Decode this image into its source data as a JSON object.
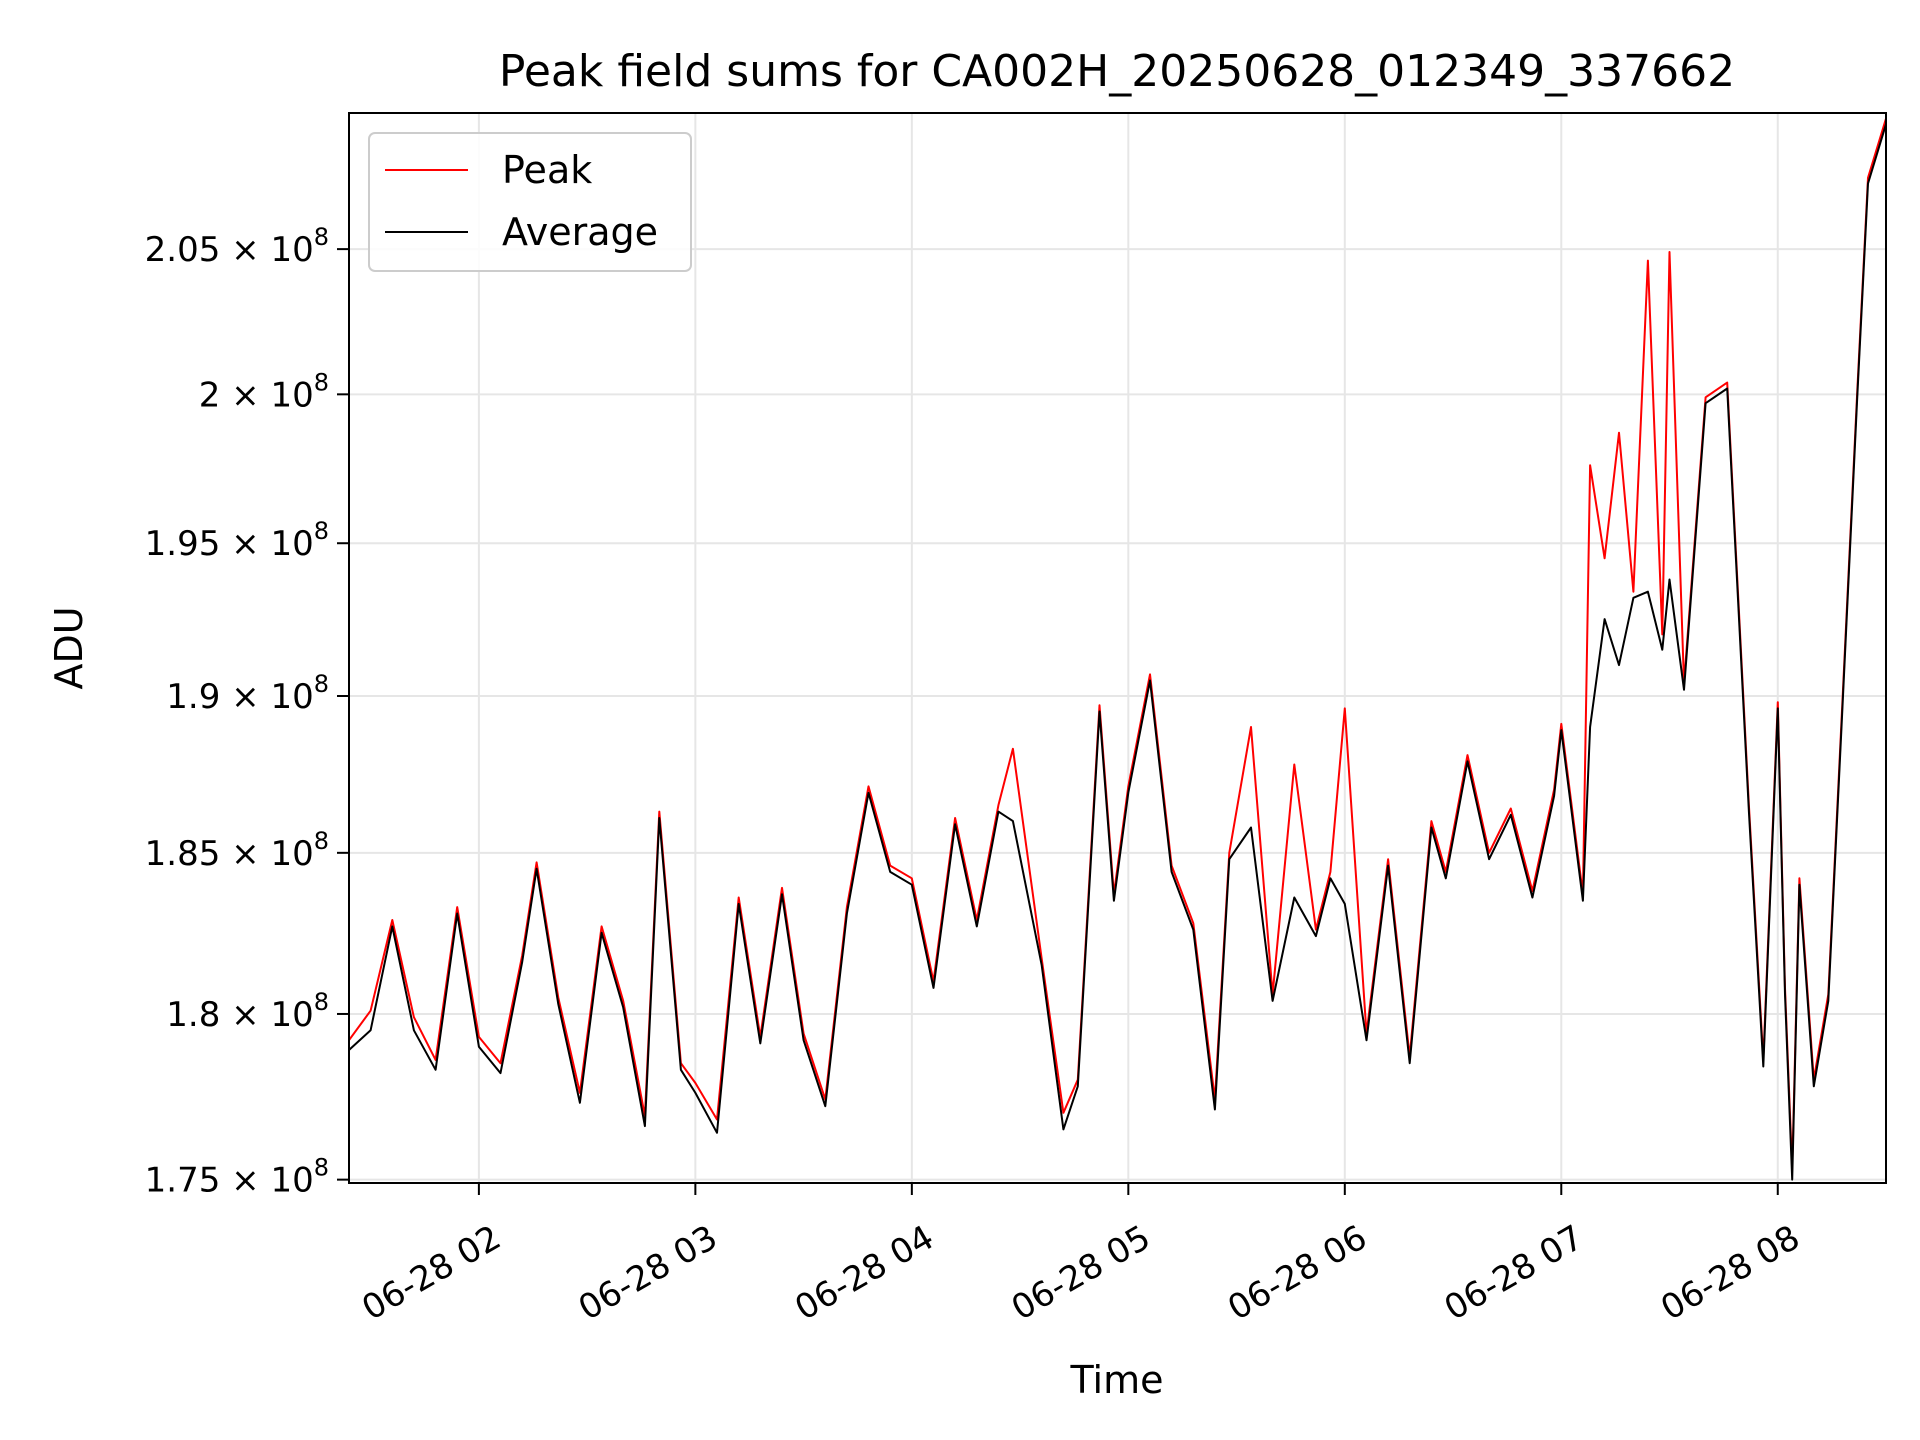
{
  "chart_data": {
    "type": "line",
    "title": "Peak field sums for CA002H_20250628_012349_337662",
    "xlabel": "Time",
    "ylabel": "ADU",
    "x_axis": {
      "type": "time",
      "range": [
        "2025-06-28T01:24",
        "2025-06-28T08:30"
      ],
      "ticks": [
        {
          "value": "2025-06-28T02:00",
          "label": "06-28 02"
        },
        {
          "value": "2025-06-28T03:00",
          "label": "06-28 03"
        },
        {
          "value": "2025-06-28T04:00",
          "label": "06-28 04"
        },
        {
          "value": "2025-06-28T05:00",
          "label": "06-28 05"
        },
        {
          "value": "2025-06-28T06:00",
          "label": "06-28 06"
        },
        {
          "value": "2025-06-28T07:00",
          "label": "06-28 07"
        },
        {
          "value": "2025-06-28T08:00",
          "label": "06-28 08"
        }
      ]
    },
    "y_axis": {
      "scale": "log",
      "range": [
        174900000,
        209800000
      ],
      "ticks": [
        {
          "value": 175000000,
          "mantissa": "1.75",
          "exponent": "8"
        },
        {
          "value": 180000000,
          "mantissa": "1.8",
          "exponent": "8"
        },
        {
          "value": 185000000,
          "mantissa": "1.85",
          "exponent": "8"
        },
        {
          "value": 190000000,
          "mantissa": "1.9",
          "exponent": "8"
        },
        {
          "value": 195000000,
          "mantissa": "1.95",
          "exponent": "8"
        },
        {
          "value": 200000000,
          "mantissa": "2",
          "exponent": "8"
        },
        {
          "value": 205000000,
          "mantissa": "2.05",
          "exponent": "8"
        }
      ]
    },
    "grid": true,
    "legend_position": "top-left",
    "series": [
      {
        "name": "Peak",
        "color": "#ff0000",
        "points": [
          [
            "2025-06-28T01:24",
            179200000
          ],
          [
            "2025-06-28T01:30",
            180100000
          ],
          [
            "2025-06-28T01:36",
            182900000
          ],
          [
            "2025-06-28T01:42",
            179900000
          ],
          [
            "2025-06-28T01:48",
            178600000
          ],
          [
            "2025-06-28T01:54",
            183300000
          ],
          [
            "2025-06-28T02:00",
            179300000
          ],
          [
            "2025-06-28T02:06",
            178500000
          ],
          [
            "2025-06-28T02:12",
            181800000
          ],
          [
            "2025-06-28T02:16",
            184700000
          ],
          [
            "2025-06-28T02:22",
            180500000
          ],
          [
            "2025-06-28T02:28",
            177600000
          ],
          [
            "2025-06-28T02:34",
            182700000
          ],
          [
            "2025-06-28T02:40",
            180400000
          ],
          [
            "2025-06-28T02:46",
            176900000
          ],
          [
            "2025-06-28T02:50",
            186300000
          ],
          [
            "2025-06-28T02:56",
            178500000
          ],
          [
            "2025-06-28T03:00",
            177900000
          ],
          [
            "2025-06-28T03:06",
            176800000
          ],
          [
            "2025-06-28T03:12",
            183600000
          ],
          [
            "2025-06-28T03:18",
            179300000
          ],
          [
            "2025-06-28T03:24",
            183900000
          ],
          [
            "2025-06-28T03:30",
            179400000
          ],
          [
            "2025-06-28T03:36",
            177400000
          ],
          [
            "2025-06-28T03:42",
            183300000
          ],
          [
            "2025-06-28T03:48",
            187100000
          ],
          [
            "2025-06-28T03:54",
            184600000
          ],
          [
            "2025-06-28T04:00",
            184200000
          ],
          [
            "2025-06-28T04:06",
            181000000
          ],
          [
            "2025-06-28T04:12",
            186100000
          ],
          [
            "2025-06-28T04:18",
            182900000
          ],
          [
            "2025-06-28T04:24",
            186500000
          ],
          [
            "2025-06-28T04:28",
            188300000
          ],
          [
            "2025-06-28T04:36",
            181700000
          ],
          [
            "2025-06-28T04:42",
            177000000
          ],
          [
            "2025-06-28T04:46",
            178000000
          ],
          [
            "2025-06-28T04:52",
            189700000
          ],
          [
            "2025-06-28T04:56",
            183700000
          ],
          [
            "2025-06-28T05:00",
            187100000
          ],
          [
            "2025-06-28T05:06",
            190700000
          ],
          [
            "2025-06-28T05:12",
            184600000
          ],
          [
            "2025-06-28T05:18",
            182800000
          ],
          [
            "2025-06-28T05:24",
            177400000
          ],
          [
            "2025-06-28T05:28",
            185000000
          ],
          [
            "2025-06-28T05:34",
            189000000
          ],
          [
            "2025-06-28T05:40",
            180600000
          ],
          [
            "2025-06-28T05:46",
            187800000
          ],
          [
            "2025-06-28T05:52",
            182600000
          ],
          [
            "2025-06-28T05:56",
            184400000
          ],
          [
            "2025-06-28T06:00",
            189600000
          ],
          [
            "2025-06-28T06:06",
            179400000
          ],
          [
            "2025-06-28T06:12",
            184800000
          ],
          [
            "2025-06-28T06:18",
            178700000
          ],
          [
            "2025-06-28T06:24",
            186000000
          ],
          [
            "2025-06-28T06:28",
            184400000
          ],
          [
            "2025-06-28T06:34",
            188100000
          ],
          [
            "2025-06-28T06:40",
            185000000
          ],
          [
            "2025-06-28T06:46",
            186400000
          ],
          [
            "2025-06-28T06:52",
            183800000
          ],
          [
            "2025-06-28T06:58",
            187000000
          ],
          [
            "2025-06-28T07:00",
            189100000
          ],
          [
            "2025-06-28T07:06",
            183700000
          ],
          [
            "2025-06-28T07:08",
            197600000
          ],
          [
            "2025-06-28T07:12",
            194500000
          ],
          [
            "2025-06-28T07:16",
            198700000
          ],
          [
            "2025-06-28T07:20",
            193400000
          ],
          [
            "2025-06-28T07:24",
            204600000
          ],
          [
            "2025-06-28T07:28",
            192000000
          ],
          [
            "2025-06-28T07:30",
            204900000
          ],
          [
            "2025-06-28T07:34",
            190400000
          ],
          [
            "2025-06-28T07:40",
            199900000
          ],
          [
            "2025-06-28T07:46",
            200400000
          ],
          [
            "2025-06-28T07:52",
            186500000
          ],
          [
            "2025-06-28T07:56",
            178600000
          ],
          [
            "2025-06-28T08:00",
            189800000
          ],
          [
            "2025-06-28T08:02",
            180800000
          ],
          [
            "2025-06-28T08:04",
            175300000
          ],
          [
            "2025-06-28T08:06",
            184200000
          ],
          [
            "2025-06-28T08:10",
            178000000
          ],
          [
            "2025-06-28T08:14",
            180600000
          ],
          [
            "2025-06-28T08:18",
            190000000
          ],
          [
            "2025-06-28T08:22",
            200000000
          ],
          [
            "2025-06-28T08:25",
            207500000
          ],
          [
            "2025-06-28T08:30",
            209600000
          ]
        ]
      },
      {
        "name": "Average",
        "color": "#000000",
        "points": [
          [
            "2025-06-28T01:24",
            178900000
          ],
          [
            "2025-06-28T01:30",
            179500000
          ],
          [
            "2025-06-28T01:36",
            182700000
          ],
          [
            "2025-06-28T01:42",
            179500000
          ],
          [
            "2025-06-28T01:48",
            178300000
          ],
          [
            "2025-06-28T01:54",
            183100000
          ],
          [
            "2025-06-28T02:00",
            179000000
          ],
          [
            "2025-06-28T02:06",
            178200000
          ],
          [
            "2025-06-28T02:12",
            181600000
          ],
          [
            "2025-06-28T02:16",
            184500000
          ],
          [
            "2025-06-28T02:22",
            180300000
          ],
          [
            "2025-06-28T02:28",
            177300000
          ],
          [
            "2025-06-28T02:34",
            182500000
          ],
          [
            "2025-06-28T02:40",
            180200000
          ],
          [
            "2025-06-28T02:46",
            176600000
          ],
          [
            "2025-06-28T02:50",
            186100000
          ],
          [
            "2025-06-28T02:56",
            178300000
          ],
          [
            "2025-06-28T03:00",
            177600000
          ],
          [
            "2025-06-28T03:06",
            176400000
          ],
          [
            "2025-06-28T03:12",
            183400000
          ],
          [
            "2025-06-28T03:18",
            179100000
          ],
          [
            "2025-06-28T03:24",
            183700000
          ],
          [
            "2025-06-28T03:30",
            179200000
          ],
          [
            "2025-06-28T03:36",
            177200000
          ],
          [
            "2025-06-28T03:42",
            183100000
          ],
          [
            "2025-06-28T03:48",
            186900000
          ],
          [
            "2025-06-28T03:54",
            184400000
          ],
          [
            "2025-06-28T04:00",
            184000000
          ],
          [
            "2025-06-28T04:06",
            180800000
          ],
          [
            "2025-06-28T04:12",
            185900000
          ],
          [
            "2025-06-28T04:18",
            182700000
          ],
          [
            "2025-06-28T04:24",
            186300000
          ],
          [
            "2025-06-28T04:28",
            186000000
          ],
          [
            "2025-06-28T04:36",
            181500000
          ],
          [
            "2025-06-28T04:42",
            176500000
          ],
          [
            "2025-06-28T04:46",
            177800000
          ],
          [
            "2025-06-28T04:52",
            189500000
          ],
          [
            "2025-06-28T04:56",
            183500000
          ],
          [
            "2025-06-28T05:00",
            186900000
          ],
          [
            "2025-06-28T05:06",
            190500000
          ],
          [
            "2025-06-28T05:12",
            184400000
          ],
          [
            "2025-06-28T05:18",
            182600000
          ],
          [
            "2025-06-28T05:24",
            177100000
          ],
          [
            "2025-06-28T05:28",
            184800000
          ],
          [
            "2025-06-28T05:34",
            185800000
          ],
          [
            "2025-06-28T05:40",
            180400000
          ],
          [
            "2025-06-28T05:46",
            183600000
          ],
          [
            "2025-06-28T05:52",
            182400000
          ],
          [
            "2025-06-28T05:56",
            184200000
          ],
          [
            "2025-06-28T06:00",
            183400000
          ],
          [
            "2025-06-28T06:06",
            179200000
          ],
          [
            "2025-06-28T06:12",
            184600000
          ],
          [
            "2025-06-28T06:18",
            178500000
          ],
          [
            "2025-06-28T06:24",
            185800000
          ],
          [
            "2025-06-28T06:28",
            184200000
          ],
          [
            "2025-06-28T06:34",
            187900000
          ],
          [
            "2025-06-28T06:40",
            184800000
          ],
          [
            "2025-06-28T06:46",
            186200000
          ],
          [
            "2025-06-28T06:52",
            183600000
          ],
          [
            "2025-06-28T06:58",
            186800000
          ],
          [
            "2025-06-28T07:00",
            188900000
          ],
          [
            "2025-06-28T07:06",
            183500000
          ],
          [
            "2025-06-28T07:08",
            189000000
          ],
          [
            "2025-06-28T07:12",
            192500000
          ],
          [
            "2025-06-28T07:16",
            191000000
          ],
          [
            "2025-06-28T07:20",
            193200000
          ],
          [
            "2025-06-28T07:24",
            193400000
          ],
          [
            "2025-06-28T07:28",
            191500000
          ],
          [
            "2025-06-28T07:30",
            193800000
          ],
          [
            "2025-06-28T07:34",
            190200000
          ],
          [
            "2025-06-28T07:40",
            199700000
          ],
          [
            "2025-06-28T07:46",
            200200000
          ],
          [
            "2025-06-28T07:52",
            186300000
          ],
          [
            "2025-06-28T07:56",
            178400000
          ],
          [
            "2025-06-28T08:00",
            189600000
          ],
          [
            "2025-06-28T08:02",
            180600000
          ],
          [
            "2025-06-28T08:04",
            175000000
          ],
          [
            "2025-06-28T08:06",
            184000000
          ],
          [
            "2025-06-28T08:10",
            177800000
          ],
          [
            "2025-06-28T08:14",
            180400000
          ],
          [
            "2025-06-28T08:18",
            189800000
          ],
          [
            "2025-06-28T08:22",
            199800000
          ],
          [
            "2025-06-28T08:25",
            207300000
          ],
          [
            "2025-06-28T08:30",
            209400000
          ]
        ]
      }
    ]
  }
}
